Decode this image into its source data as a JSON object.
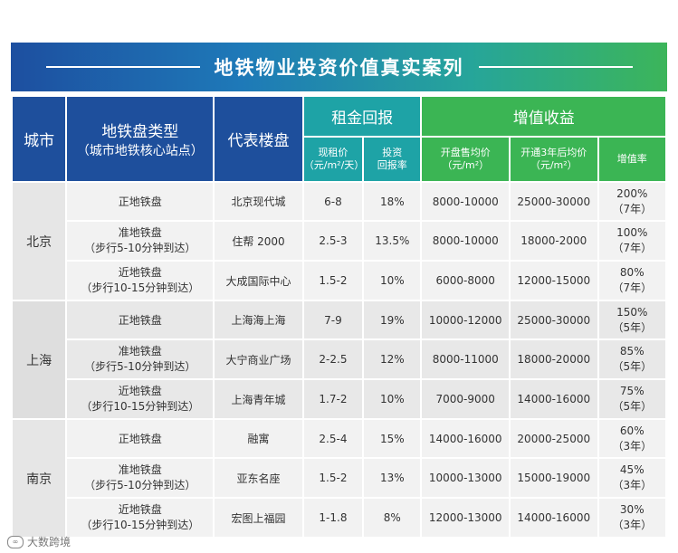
{
  "title": "地铁物业投资价值真实案列",
  "headers": {
    "city": "城市",
    "type_main": "地铁盘类型",
    "type_sub": "（城市地铁核心站点）",
    "project": "代表楼盘",
    "rent_group": "租金回报",
    "rent_price_l1": "现租价",
    "rent_price_l2": "（元/m²/天）",
    "rent_rate_l1": "投资",
    "rent_rate_l2": "回报率",
    "appr_group": "增值收益",
    "open_price_l1": "开盘售均价",
    "open_price_l2": "（元/m²）",
    "after3_l1": "开通3年后均价",
    "after3_l2": "（元/m²）",
    "appr_rate": "增值率"
  },
  "cities": [
    {
      "name": "北京",
      "rows": [
        {
          "type1": "正地铁盘",
          "type2": "",
          "project": "北京现代城",
          "rent": "6-8",
          "rate": "18%",
          "open": "8000-10000",
          "after": "25000-30000",
          "appr1": "200%",
          "appr2": "（7年）"
        },
        {
          "type1": "准地铁盘",
          "type2": "（步行5-10分钟到达）",
          "project": "住帮 2000",
          "rent": "2.5-3",
          "rate": "13.5%",
          "open": "8000-10000",
          "after": "18000-2000",
          "appr1": "100%",
          "appr2": "（7年）"
        },
        {
          "type1": "近地铁盘",
          "type2": "（步行10-15分钟到达）",
          "project": "大成国际中心",
          "rent": "1.5-2",
          "rate": "10%",
          "open": "6000-8000",
          "after": "12000-15000",
          "appr1": "80%",
          "appr2": "（7年）"
        }
      ]
    },
    {
      "name": "上海",
      "rows": [
        {
          "type1": "正地铁盘",
          "type2": "",
          "project": "上海海上海",
          "rent": "7-9",
          "rate": "19%",
          "open": "10000-12000",
          "after": "25000-30000",
          "appr1": "150%",
          "appr2": "（5年）"
        },
        {
          "type1": "准地铁盘",
          "type2": "（步行5-10分钟到达）",
          "project": "大宁商业广场",
          "rent": "2-2.5",
          "rate": "12%",
          "open": "8000-11000",
          "after": "18000-20000",
          "appr1": "85%",
          "appr2": "（5年）"
        },
        {
          "type1": "近地铁盘",
          "type2": "（步行10-15分钟到达）",
          "project": "上海青年城",
          "rent": "1.7-2",
          "rate": "10%",
          "open": "7000-9000",
          "after": "14000-16000",
          "appr1": "75%",
          "appr2": "（5年）"
        }
      ]
    },
    {
      "name": "南京",
      "rows": [
        {
          "type1": "正地铁盘",
          "type2": "",
          "project": "融寓",
          "rent": "2.5-4",
          "rate": "15%",
          "open": "14000-16000",
          "after": "20000-25000",
          "appr1": "60%",
          "appr2": "（3年）"
        },
        {
          "type1": "准地铁盘",
          "type2": "（步行5-10分钟到达）",
          "project": "亚东名座",
          "rent": "1.5-2",
          "rate": "13%",
          "open": "10000-13000",
          "after": "15000-19000",
          "appr1": "45%",
          "appr2": "（3年）"
        },
        {
          "type1": "近地铁盘",
          "type2": "（步行10-15分钟到达）",
          "project": "宏图上福园",
          "rent": "1-1.8",
          "rate": "8%",
          "open": "12000-13000",
          "after": "14000-16000",
          "appr1": "30%",
          "appr2": "（3年）"
        }
      ]
    }
  ],
  "watermark": "大数跨境",
  "colors": {
    "blue": "#1e4f9c",
    "teal": "#1ea3a6",
    "green": "#3bb554"
  }
}
